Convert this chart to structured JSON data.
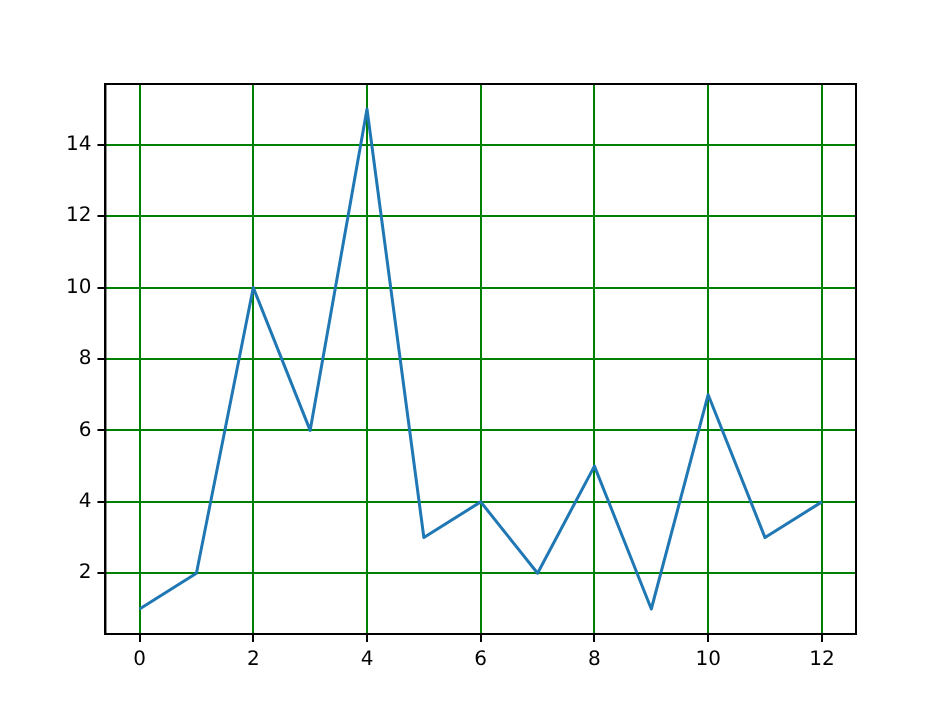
{
  "chart_data": {
    "type": "line",
    "x": [
      0,
      1,
      2,
      3,
      4,
      5,
      6,
      7,
      8,
      9,
      10,
      11,
      12
    ],
    "series": [
      {
        "color": "#1f77b4",
        "values": [
          1,
          2,
          10,
          6,
          15,
          3,
          4,
          2,
          5,
          1,
          7,
          3,
          4
        ]
      }
    ],
    "xlim": [
      -0.6,
      12.6
    ],
    "ylim": [
      0.3,
      15.7
    ],
    "xticks": [
      0,
      2,
      4,
      6,
      8,
      10,
      12
    ],
    "yticks": [
      2,
      4,
      6,
      8,
      10,
      12,
      14
    ],
    "grid": true,
    "marker": "none",
    "line_style": "solid",
    "legend": false
  }
}
